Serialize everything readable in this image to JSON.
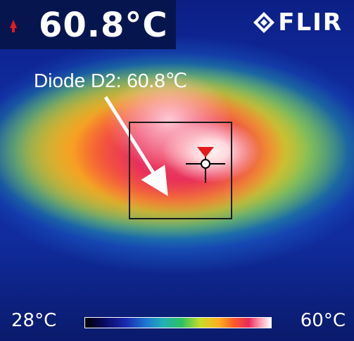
{
  "readout": {
    "temperature": "60.8°C",
    "indicator_color": "#e41a1a"
  },
  "brand": {
    "logo_text": "FLIR"
  },
  "annotation": {
    "label": "Diode D2: 60.8℃"
  },
  "scale": {
    "min_label": "28°C",
    "max_label": "60°C"
  },
  "colors": {
    "crosshair_marker": "#e41a1a",
    "roi_box": "#1a1a1a",
    "background": "#0a1a6b"
  }
}
